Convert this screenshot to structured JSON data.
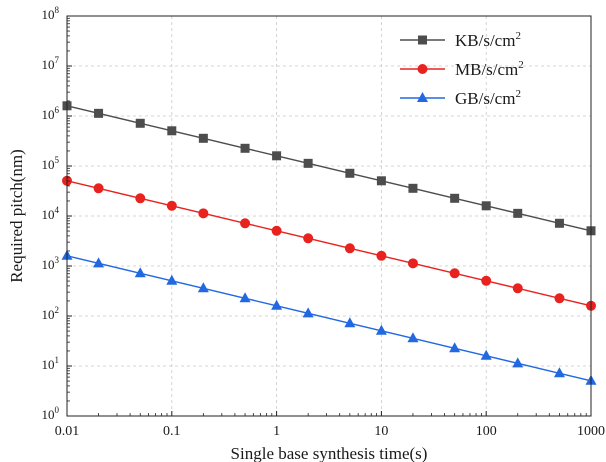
{
  "chart_data": {
    "type": "line",
    "title": "",
    "xlabel": "Single base synthesis time(s)",
    "ylabel": "Required pitch(nm)",
    "x_scale": "log",
    "y_scale": "log",
    "xlim": [
      0.01,
      1000
    ],
    "ylim": [
      1,
      100000000
    ],
    "grid": true,
    "legend_position": "top-right",
    "x_ticks": [
      {
        "value": 0.01,
        "label": "0.01"
      },
      {
        "value": 0.1,
        "label": "0.1"
      },
      {
        "value": 1,
        "label": "1"
      },
      {
        "value": 10,
        "label": "10"
      },
      {
        "value": 100,
        "label": "100"
      },
      {
        "value": 1000,
        "label": "1000"
      }
    ],
    "y_ticks": [
      {
        "value": 1,
        "base": "10",
        "exp": "0"
      },
      {
        "value": 10,
        "base": "10",
        "exp": "1"
      },
      {
        "value": 100,
        "base": "10",
        "exp": "2"
      },
      {
        "value": 1000,
        "base": "10",
        "exp": "3"
      },
      {
        "value": 10000,
        "base": "10",
        "exp": "4"
      },
      {
        "value": 100000,
        "base": "10",
        "exp": "5"
      },
      {
        "value": 1000000,
        "base": "10",
        "exp": "6"
      },
      {
        "value": 10000000,
        "base": "10",
        "exp": "7"
      },
      {
        "value": 100000000,
        "base": "10",
        "exp": "8"
      }
    ],
    "x": [
      0.01,
      0.02,
      0.05,
      0.1,
      0.2,
      0.5,
      1,
      2,
      5,
      10,
      20,
      50,
      100,
      200,
      500,
      1000
    ],
    "series": [
      {
        "name": "KB/s/cm",
        "name_sup": "2",
        "color": "#4d4d4d",
        "marker": "square",
        "values": [
          1600000,
          1130000,
          715000,
          506000,
          358000,
          226000,
          160000,
          113000,
          71500,
          50600,
          35800,
          22600,
          16000,
          11300,
          7150,
          5060
        ]
      },
      {
        "name": "MB/s/cm",
        "name_sup": "2",
        "color": "#e8231f",
        "marker": "circle",
        "values": [
          50600,
          35800,
          22600,
          16000,
          11300,
          7150,
          5060,
          3580,
          2260,
          1600,
          1130,
          715,
          506,
          358,
          226,
          160
        ]
      },
      {
        "name": "GB/s/cm",
        "name_sup": "2",
        "color": "#2268e0",
        "marker": "triangle",
        "values": [
          1600,
          1130,
          715,
          506,
          358,
          226,
          160,
          113,
          71.5,
          50.6,
          35.8,
          22.6,
          16,
          11.3,
          7.15,
          5.06
        ]
      }
    ]
  }
}
